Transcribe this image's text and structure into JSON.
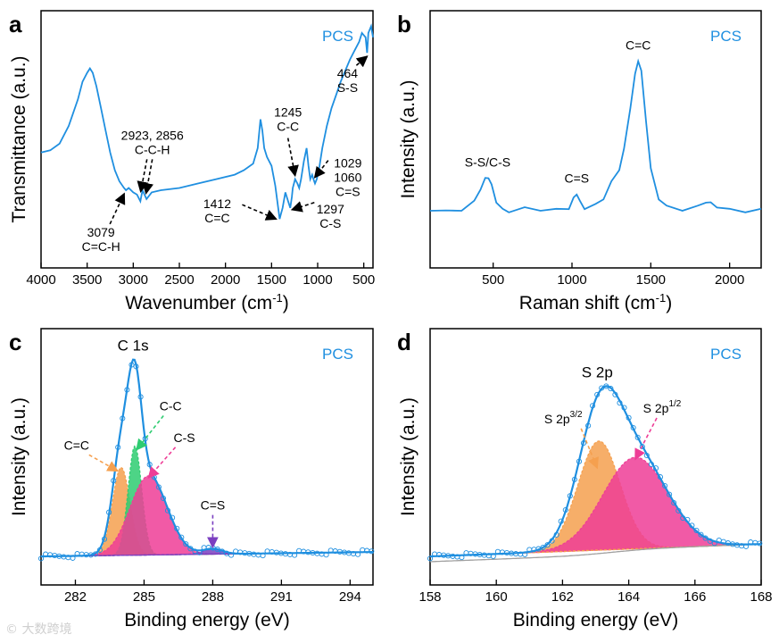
{
  "colors": {
    "spectrum": "#1f8fe0",
    "orange": "#f5a04f",
    "green": "#2ecc71",
    "pink": "#ee3d96",
    "purple": "#7b3fc0",
    "background_line": "#a0a0a0"
  },
  "watermark": "© 大数跨境",
  "chart_data": [
    {
      "panel": "a",
      "type": "line",
      "legend": "PCS",
      "legend_position": "top-right",
      "xlabel": "Wavenumber (cm",
      "xlabel_sup": "-1",
      "xlabel_tail": ")",
      "ylabel": "Transmittance (a.u.)",
      "xlim": [
        4000,
        400
      ],
      "x_reversed": true,
      "xticks": [
        4000,
        3500,
        3000,
        2500,
        2000,
        1500,
        1000,
        500
      ],
      "series": [
        {
          "x": [
            4000,
            3900,
            3800,
            3700,
            3600,
            3550,
            3500,
            3470,
            3440,
            3400,
            3350,
            3300,
            3250,
            3200,
            3150,
            3100,
            3079,
            3050,
            3000,
            2960,
            2923,
            2900,
            2856,
            2800,
            2700,
            2500,
            2300,
            2100,
            1900,
            1800,
            1700,
            1650,
            1620,
            1600,
            1580,
            1550,
            1500,
            1460,
            1412,
            1400,
            1380,
            1350,
            1320,
            1297,
            1280,
            1270,
            1245,
            1220,
            1200,
            1180,
            1150,
            1120,
            1100,
            1080,
            1060,
            1045,
            1029,
            1010,
            980,
            950,
            900,
            850,
            800,
            750,
            700,
            650,
            600,
            550,
            520,
            500,
            480,
            464,
            450,
            420,
            400
          ],
          "y": [
            0.4,
            0.41,
            0.44,
            0.52,
            0.64,
            0.72,
            0.76,
            0.78,
            0.76,
            0.7,
            0.6,
            0.5,
            0.4,
            0.32,
            0.27,
            0.24,
            0.23,
            0.24,
            0.22,
            0.21,
            0.18,
            0.23,
            0.19,
            0.22,
            0.23,
            0.24,
            0.26,
            0.28,
            0.3,
            0.32,
            0.35,
            0.42,
            0.55,
            0.5,
            0.42,
            0.38,
            0.34,
            0.25,
            0.1,
            0.12,
            0.15,
            0.22,
            0.18,
            0.15,
            0.2,
            0.24,
            0.28,
            0.26,
            0.24,
            0.28,
            0.36,
            0.42,
            0.34,
            0.28,
            0.3,
            0.28,
            0.26,
            0.28,
            0.34,
            0.42,
            0.52,
            0.6,
            0.66,
            0.72,
            0.77,
            0.82,
            0.86,
            0.9,
            0.94,
            0.93,
            0.92,
            0.85,
            0.94,
            0.97,
            0.92
          ]
        }
      ],
      "annotations": [
        {
          "lines": [
            "3079",
            "C=C-H"
          ],
          "x": 3079,
          "y": 0.23
        },
        {
          "lines": [
            "2923, 2856",
            "C-C-H"
          ],
          "x": 2900,
          "y": 0.2
        },
        {
          "lines": [
            "1412",
            "C=C"
          ],
          "x": 1412,
          "y": 0.1
        },
        {
          "lines": [
            "1245",
            "C-C"
          ],
          "x": 1245,
          "y": 0.28
        },
        {
          "lines": [
            "1297",
            "C-S"
          ],
          "x": 1297,
          "y": 0.15
        },
        {
          "lines": [
            "1029",
            "1060",
            "C=S"
          ],
          "x": 1060,
          "y": 0.3
        },
        {
          "lines": [
            "464",
            "S-S"
          ],
          "x": 464,
          "y": 0.85
        }
      ]
    },
    {
      "panel": "b",
      "type": "line",
      "legend": "PCS",
      "legend_position": "top-right",
      "xlabel": "Raman shift (cm",
      "xlabel_sup": "-1",
      "xlabel_tail": ")",
      "ylabel": "Intensity (a.u.)",
      "xlim": [
        100,
        2200
      ],
      "xticks": [
        500,
        1000,
        1500,
        2000
      ],
      "series": [
        {
          "x": [
            100,
            200,
            300,
            380,
            420,
            450,
            470,
            490,
            520,
            560,
            600,
            700,
            800,
            900,
            980,
            1010,
            1030,
            1050,
            1080,
            1150,
            1200,
            1250,
            1300,
            1330,
            1370,
            1400,
            1420,
            1440,
            1470,
            1500,
            1550,
            1600,
            1700,
            1800,
            1850,
            1880,
            1920,
            2000,
            2100,
            2200
          ],
          "y": [
            0.05,
            0.04,
            0.05,
            0.1,
            0.18,
            0.24,
            0.25,
            0.2,
            0.1,
            0.05,
            0.04,
            0.06,
            0.05,
            0.05,
            0.06,
            0.12,
            0.15,
            0.1,
            0.06,
            0.08,
            0.12,
            0.22,
            0.3,
            0.42,
            0.68,
            0.88,
            0.97,
            0.9,
            0.6,
            0.3,
            0.12,
            0.07,
            0.05,
            0.07,
            0.1,
            0.09,
            0.07,
            0.05,
            0.04,
            0.05
          ]
        }
      ],
      "annotations": [
        {
          "lines": [
            "S-S/C-S"
          ],
          "x": 465,
          "y": 0.25
        },
        {
          "lines": [
            "C=S"
          ],
          "x": 1030,
          "y": 0.15
        },
        {
          "lines": [
            "C=C"
          ],
          "x": 1420,
          "y": 0.97
        }
      ]
    },
    {
      "panel": "c",
      "type": "area",
      "legend": "PCS",
      "legend_position": "top-right",
      "xlabel": "Binding energy (eV)",
      "ylabel": "Intensity (a.u.)",
      "xlim": [
        280.5,
        295.0
      ],
      "xticks": [
        282,
        285,
        288,
        291,
        294
      ],
      "title": "C 1s",
      "peaks": [
        {
          "name": "C=C",
          "center": 284.0,
          "fwhm": 0.9,
          "amplitude": 0.5,
          "color": "#f5a04f"
        },
        {
          "name": "C-C",
          "center": 284.6,
          "fwhm": 0.7,
          "amplitude": 0.62,
          "color": "#2ecc71"
        },
        {
          "name": "C-S",
          "center": 285.2,
          "fwhm": 1.9,
          "amplitude": 0.45,
          "color": "#ee3d96"
        },
        {
          "name": "C=S",
          "center": 288.0,
          "fwhm": 1.0,
          "amplitude": 0.03,
          "color": "#7b3fc0"
        }
      ],
      "baseline": [
        0.01,
        0.035
      ]
    },
    {
      "panel": "d",
      "type": "area",
      "legend": "PCS",
      "legend_position": "top-right",
      "xlabel": "Binding energy (eV)",
      "ylabel": "Intensity (a.u.)",
      "xlim": [
        158,
        168
      ],
      "xticks": [
        158,
        160,
        162,
        164,
        166,
        168
      ],
      "title": "S 2p",
      "peaks": [
        {
          "name": "S 2p",
          "sup": "3/2",
          "center": 163.1,
          "fwhm": 1.5,
          "amplitude": 0.62,
          "color": "#f5a04f"
        },
        {
          "name": "S 2p",
          "sup": "1/2",
          "center": 164.2,
          "fwhm": 2.3,
          "amplitude": 0.52,
          "color": "#ee3d96"
        }
      ],
      "baseline": [
        0.01,
        0.08
      ]
    }
  ]
}
